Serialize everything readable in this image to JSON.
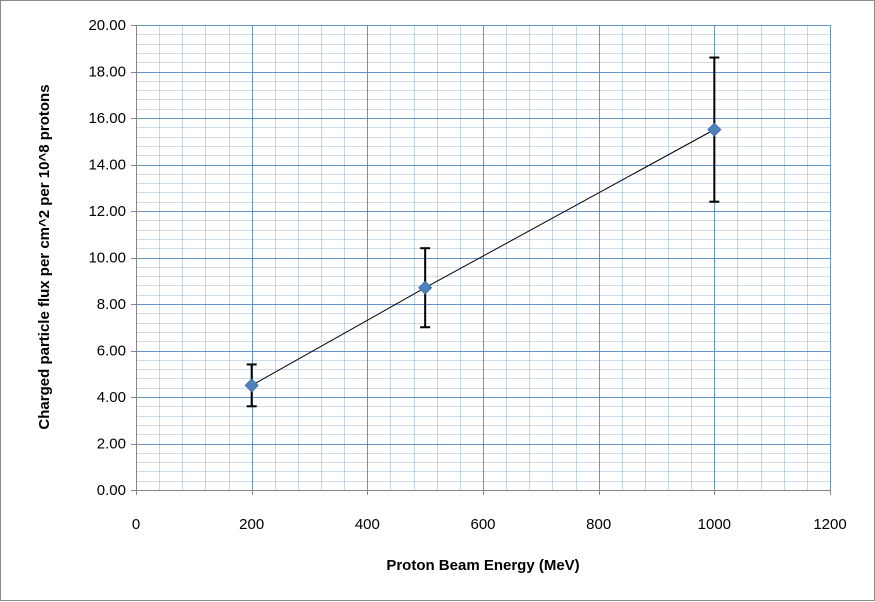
{
  "chart_data": {
    "type": "scatter",
    "title": "",
    "xlabel": "Proton Beam Energy (MeV)",
    "ylabel": "Charged particle flux per cm^2 per 10^8 protons",
    "xlim": [
      0,
      1200
    ],
    "ylim": [
      0,
      20
    ],
    "x_ticks": [
      "0",
      "200",
      "400",
      "600",
      "800",
      "1000",
      "1200"
    ],
    "y_ticks": [
      "0.00",
      "2.00",
      "4.00",
      "6.00",
      "8.00",
      "10.00",
      "12.00",
      "14.00",
      "16.00",
      "18.00",
      "20.00"
    ],
    "grid": true,
    "legend": "none",
    "series": [
      {
        "x": [
          200,
          500,
          1000
        ],
        "y": [
          4.5,
          8.7,
          15.5
        ],
        "error_low": [
          3.6,
          7.0,
          12.4
        ],
        "error_high": [
          5.4,
          10.4,
          18.6
        ],
        "marker": "diamond",
        "line": true,
        "marker_color": "#4f81bd",
        "line_color": "#000000"
      }
    ],
    "colors": {
      "grid": "#4f81bd",
      "axis": "#868686"
    }
  }
}
